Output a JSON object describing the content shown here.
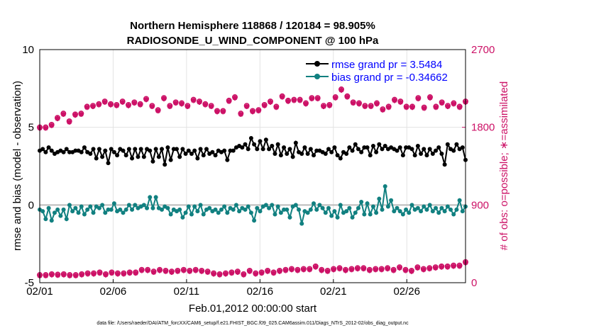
{
  "chart_data": {
    "type": "line",
    "title": "Northern Hemisphere 118868 / 120184 = 98.905%",
    "subtitle": "RADIOSONDE_U_WIND_COMPONENT @ 100 hPa",
    "xlabel": "Feb.01,2012 00:00:00 start",
    "ylabel": "rmse and bias (model - observation)",
    "y2label": "# of obs: o=possible; ∗=assimilated",
    "footnote": "data file: /Users/raeder/DAI/ATM_forcXX/CAM6_setup/f.e21.FHIST_BGC.f09_025.CAM6assim.011/Diags_NTrS_2012-02/obs_diag_output.nc",
    "xlim": [
      0,
      58
    ],
    "ylim": [
      -5,
      10
    ],
    "y2lim": [
      0,
      2700
    ],
    "grid": true,
    "x_tick_labels": [
      "02/01",
      "02/06",
      "02/11",
      "02/16",
      "02/21",
      "02/26"
    ],
    "x_tick_values": [
      0,
      10,
      20,
      30,
      40,
      50
    ],
    "y_ticks": [
      "-5",
      "0",
      "5",
      "10"
    ],
    "y2_ticks": [
      "0",
      "900",
      "1800",
      "2700"
    ],
    "colors": {
      "rmse": "#000000",
      "bias": "#118080",
      "obs": "#cc1166",
      "zero_line": "#bbbbbb"
    },
    "series": [
      {
        "name": "rmse",
        "legend": "rmse grand pr = 3.5484",
        "values": [
          3.5,
          3.6,
          3.4,
          3.7,
          3.5,
          3.3,
          3.4,
          3.5,
          3.4,
          3.6,
          3.4,
          3.4,
          3.5,
          3.5,
          3.4,
          3.7,
          3.4,
          3.3,
          3.6,
          3.0,
          3.6,
          3.1,
          3.5,
          2.7,
          3.6,
          3.4,
          3.2,
          3.6,
          3.5,
          3.2,
          3.6,
          3.0,
          3.6,
          3.1,
          3.6,
          3.1,
          3.6,
          3.5,
          2.8,
          3.6,
          3.1,
          3.6,
          2.6,
          3.7,
          2.9,
          3.6,
          3.6,
          3.1,
          3.6,
          3.3,
          3.5,
          3.3,
          3.5,
          3.0,
          3.6,
          3.2,
          3.6,
          3.3,
          3.4,
          3.2,
          3.5,
          3.4,
          3.5,
          2.9,
          3.5,
          3.5,
          3.7,
          3.8,
          3.7,
          3.9,
          3.6,
          4.3,
          3.9,
          3.6,
          4.1,
          3.6,
          4.2,
          3.6,
          3.8,
          3.3,
          3.9,
          3.2,
          3.7,
          3.3,
          3.6,
          3.1,
          4.0,
          3.4,
          3.3,
          3.7,
          3.3,
          3.6,
          3.2,
          3.5,
          3.5,
          3.4,
          3.3,
          3.6,
          3.4,
          3.7,
          3.2,
          3.0,
          3.4,
          3.3,
          3.7,
          3.5,
          3.9,
          3.6,
          3.4,
          3.7,
          3.7,
          3.2,
          3.8,
          3.4,
          3.9,
          3.6,
          3.8,
          3.6,
          3.7,
          3.6,
          3.5,
          3.7,
          3.2,
          3.7,
          3.7,
          3.6,
          3.2,
          3.8,
          3.3,
          3.6,
          3.2,
          3.6,
          3.3,
          3.5,
          3.7,
          3.3,
          2.6,
          3.9,
          3.6,
          3.5,
          3.9,
          3.6,
          3.7,
          2.9
        ]
      },
      {
        "name": "bias",
        "legend": "bias grand pr = -0.34662",
        "values": [
          -0.3,
          -0.4,
          -0.9,
          -0.2,
          -1.0,
          -0.5,
          -0.3,
          -0.7,
          -0.3,
          -0.9,
          0.0,
          -0.4,
          -0.2,
          -0.5,
          -0.1,
          -0.6,
          -0.3,
          -0.1,
          -0.5,
          -0.1,
          -0.2,
          0.0,
          -0.5,
          -0.3,
          -0.3,
          0.1,
          -0.4,
          -0.3,
          -0.5,
          -0.3,
          0.0,
          -0.3,
          0.0,
          -0.2,
          -0.1,
          0.0,
          -0.2,
          0.5,
          -0.2,
          0.5,
          -0.2,
          -0.3,
          -0.1,
          -0.2,
          -0.6,
          -0.3,
          -0.4,
          -0.3,
          -0.8,
          -0.5,
          -0.1,
          -0.6,
          -0.1,
          -0.4,
          0.0,
          -0.6,
          -0.3,
          -0.2,
          -0.4,
          -0.3,
          -0.5,
          -0.3,
          -0.1,
          -0.5,
          -0.2,
          -0.3,
          0.0,
          -0.4,
          -0.2,
          -0.3,
          -0.1,
          -0.5,
          -1.0,
          -0.2,
          -0.4,
          -0.1,
          0.0,
          -0.2,
          0.0,
          -0.6,
          -0.1,
          -0.5,
          -0.3,
          -0.3,
          -0.8,
          -0.1,
          0.0,
          -0.3,
          -1.2,
          -0.4,
          -0.5,
          -0.3,
          0.1,
          -0.3,
          0.0,
          -0.2,
          -0.5,
          -0.2,
          -0.7,
          -0.4,
          -0.8,
          0.0,
          -0.5,
          -0.4,
          -0.2,
          -0.8,
          -0.5,
          -0.2,
          0.2,
          -0.6,
          0.1,
          -0.6,
          -0.1,
          -0.5,
          0.4,
          -0.3,
          1.2,
          -0.1,
          0.3,
          -0.4,
          -0.2,
          -0.4,
          -0.6,
          -0.3,
          -0.5,
          0.0,
          -0.3,
          -0.2,
          -0.4,
          -0.1,
          -0.3,
          0.0,
          -0.4,
          -0.2,
          -0.5,
          -0.2,
          -0.4,
          -0.1,
          -0.3,
          -0.6,
          -0.3,
          0.3,
          -0.4,
          -0.1
        ]
      },
      {
        "name": "possible",
        "axis": "right",
        "values": [
          1800,
          1850,
          1800,
          1850,
          1830,
          1900,
          1910,
          1970,
          1960,
          2020,
          1870,
          1930,
          1950,
          1990,
          1960,
          2000,
          2040,
          2020,
          2050,
          2010,
          2070,
          2000,
          2100,
          2070,
          2070,
          2170,
          2060,
          2140,
          2100,
          2150,
          2060,
          2180,
          2090,
          2010,
          2070,
          2150,
          2130,
          2170,
          2050,
          2070,
          2000,
          2060,
          2140,
          2150,
          2050,
          2090,
          2090,
          2170,
          2080,
          2230,
          2050,
          2020,
          2120,
          2210,
          2100,
          2080,
          2070,
          2170,
          2050,
          2010,
          1990,
          2010,
          1990,
          2040,
          2110,
          2130,
          2150,
          2130,
          1960,
          2100,
          2050,
          2000,
          1990,
          2100,
          2000,
          2090,
          2060,
          2080,
          2100,
          2070,
          2040,
          2070,
          2160,
          2120,
          2110,
          2200,
          2120,
          2090,
          2120,
          2190,
          2080,
          2160,
          2140,
          2170,
          2140,
          2140,
          2050,
          2070,
          2060,
          2080,
          2150,
          2090,
          2240,
          2200,
          2160,
          2140,
          2090,
          2080,
          2080,
          2130,
          2050,
          2130,
          2050,
          2050,
          2080,
          2110,
          2010,
          2090,
          2040,
          2080,
          2120,
          2080,
          2100,
          2070,
          2040,
          2080,
          2040,
          2080,
          2140,
          2080,
          2030,
          2030,
          2150,
          2090,
          2040,
          2040,
          2090,
          2090,
          2050,
          2150,
          2080,
          2150,
          2040,
          2040,
          2100
        ]
      },
      {
        "name": "assimilated",
        "axis": "right",
        "values": [
          1790,
          1840,
          1790,
          1840,
          1820,
          1890,
          1900,
          1960,
          1950,
          2010,
          1860,
          1920,
          1940,
          1980,
          1950,
          1990,
          2030,
          2010,
          2040,
          2000,
          2060,
          1990,
          2090,
          2060,
          2060,
          2160,
          2050,
          2130,
          2090,
          2140,
          2050,
          2170,
          2080,
          2000,
          2060,
          2140,
          2120,
          2160,
          2040,
          2060,
          1990,
          2050,
          2130,
          2140,
          2040,
          2080,
          2080,
          2160,
          2070,
          2220,
          2040,
          2010,
          2110,
          2200,
          2090,
          2070,
          2060,
          2160,
          2040,
          2000,
          1980,
          2000,
          1980,
          2030,
          2100,
          2120,
          2140,
          2120,
          1950,
          2090,
          2040,
          1990,
          1980,
          2090,
          1990,
          2080,
          2050,
          2070,
          2090,
          2060,
          2030,
          2060,
          2150,
          2110,
          2100,
          2190,
          2110,
          2080,
          2110,
          2180,
          2070,
          2150,
          2130,
          2160,
          2130,
          2130,
          2040,
          2060,
          2050,
          2070,
          2140,
          2080,
          2230,
          2190,
          2150,
          2130,
          2080,
          2070,
          2070,
          2120,
          2040,
          2120,
          2040,
          2040,
          2070,
          2100,
          2000,
          2080,
          2030,
          2070,
          2110,
          2070,
          2090,
          2060,
          2030,
          2070,
          2030,
          2070,
          2130,
          2070,
          2020,
          2020,
          2140,
          2080,
          2030,
          2030,
          2080,
          2080,
          2040,
          2140,
          2070,
          2140,
          2030,
          2030,
          2090
        ]
      },
      {
        "name": "bottom_possible",
        "axis": "right",
        "values": [
          90,
          100,
          90,
          95,
          100,
          90,
          95,
          110,
          100,
          100,
          90,
          100,
          90,
          110,
          100,
          95,
          110,
          100,
          110,
          100,
          120,
          110,
          100,
          110,
          120,
          120,
          110,
          120,
          110,
          130,
          120,
          140,
          120,
          130,
          150,
          140,
          150,
          140,
          130,
          140,
          150,
          130,
          140,
          120,
          130,
          150,
          140,
          170,
          150,
          160,
          140,
          130,
          150,
          180,
          140,
          140,
          130,
          130,
          110,
          110,
          100,
          140,
          110,
          100,
          120,
          110,
          130,
          120,
          100,
          110,
          140,
          120,
          110,
          140,
          120,
          130,
          140,
          120,
          120,
          150,
          140,
          130,
          150,
          140,
          160,
          150,
          150,
          140,
          160,
          150,
          160,
          150,
          190,
          170,
          150,
          160,
          140,
          170,
          160,
          150,
          170,
          170,
          150,
          180,
          160,
          150,
          170,
          180,
          170,
          160,
          150,
          190,
          160,
          150,
          160,
          150,
          170,
          180,
          150,
          160,
          180,
          170,
          150,
          160,
          140,
          180,
          180,
          170,
          160,
          170,
          170,
          160,
          180,
          170,
          190,
          170,
          190,
          150,
          200,
          170,
          200,
          220,
          240
        ]
      },
      {
        "name": "bottom_assimilated",
        "axis": "right",
        "values": [
          80,
          90,
          80,
          85,
          90,
          80,
          85,
          100,
          90,
          90,
          80,
          90,
          80,
          100,
          90,
          85,
          100,
          90,
          100,
          90,
          110,
          100,
          90,
          100,
          110,
          110,
          100,
          110,
          100,
          120,
          110,
          130,
          110,
          120,
          140,
          130,
          140,
          130,
          120,
          130,
          140,
          120,
          130,
          110,
          120,
          140,
          130,
          160,
          140,
          150,
          130,
          120,
          140,
          170,
          130,
          130,
          120,
          120,
          100,
          100,
          90,
          130,
          100,
          90,
          110,
          100,
          120,
          110,
          90,
          100,
          130,
          110,
          100,
          130,
          110,
          120,
          130,
          110,
          110,
          140,
          130,
          120,
          140,
          130,
          150,
          140,
          140,
          130,
          150,
          140,
          150,
          140,
          180,
          160,
          140,
          150,
          130,
          160,
          150,
          140,
          160,
          160,
          140,
          170,
          150,
          140,
          160,
          170,
          160,
          150,
          140,
          180,
          150,
          140,
          150,
          140,
          160,
          170,
          140,
          150,
          170,
          160,
          140,
          150,
          130,
          170,
          170,
          160,
          150,
          160,
          160,
          150,
          170,
          160,
          180,
          160,
          180,
          140,
          190,
          160,
          190,
          210,
          230
        ]
      }
    ]
  }
}
